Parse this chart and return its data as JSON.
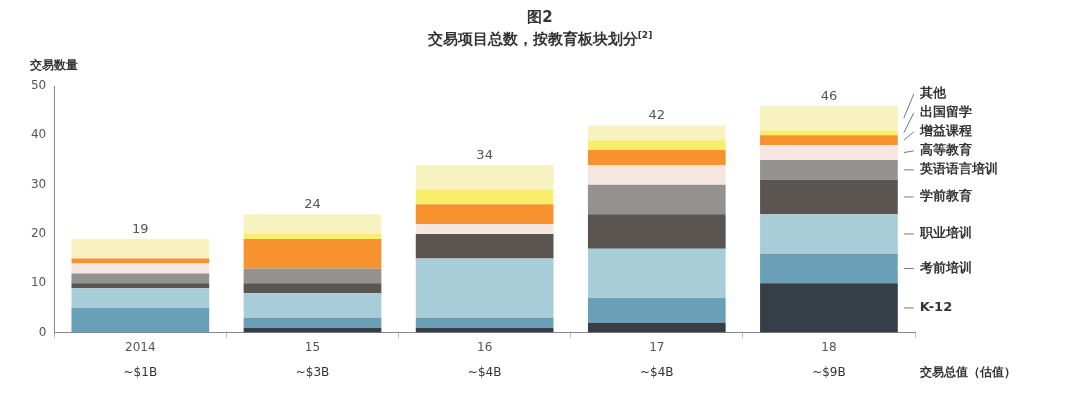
{
  "chart_data": {
    "type": "bar",
    "stacked": true,
    "title": "图2",
    "subtitle": "交易项目总数，按教育板块划分$^{[2]}$",
    "ylabel": "交易数量",
    "categories": [
      "2014",
      "15",
      "16",
      "17",
      "18"
    ],
    "ylim": [
      0,
      50
    ],
    "yticks": [
      0,
      10,
      20,
      30,
      40,
      50
    ],
    "grid": false,
    "legend": false,
    "series": [
      {
        "name": "K-12",
        "color": "#363e48",
        "values": [
          0,
          1,
          1,
          2,
          10
        ]
      },
      {
        "name": "考前培训",
        "color": "#6a9fb8",
        "values": [
          5,
          2,
          2,
          5,
          6
        ]
      },
      {
        "name": "职业培训",
        "color": "#a8cdd8",
        "values": [
          4,
          5,
          12,
          10,
          8
        ]
      },
      {
        "name": "学前教育",
        "color": "#5a5550",
        "values": [
          1,
          2,
          5,
          7,
          7
        ]
      },
      {
        "name": "英语语言培训",
        "color": "#949290",
        "values": [
          2,
          3,
          0,
          6,
          4
        ]
      },
      {
        "name": "高等教育",
        "color": "#f5e6e0",
        "values": [
          2,
          0,
          2,
          4,
          3
        ]
      },
      {
        "name": "增益课程",
        "color": "#f7922e",
        "values": [
          1,
          6,
          4,
          3,
          2
        ]
      },
      {
        "name": "出国留学",
        "color": "#f7ee6a",
        "values": [
          0,
          1,
          3,
          2,
          1
        ]
      },
      {
        "name": "其他",
        "color": "#f7f2c0",
        "values": [
          4,
          4,
          5,
          3,
          5
        ]
      }
    ],
    "totals": [
      "19",
      "24",
      "34",
      "42",
      "46"
    ],
    "annotations": [
      "~$1B",
      "~$3B",
      "~$4B",
      "~$4B",
      "~$9B",
      "交易总值（估值）"
    ]
  }
}
